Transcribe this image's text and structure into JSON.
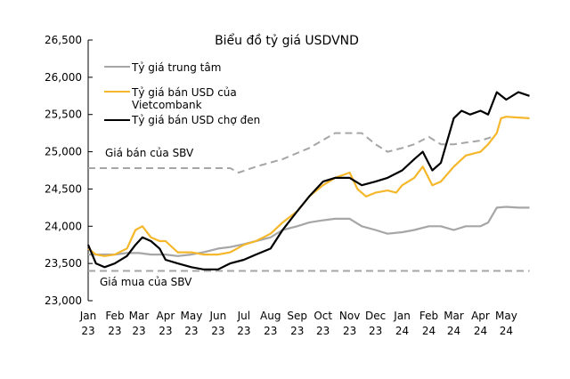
{
  "chart_data": {
    "type": "line",
    "title": "Biểu đồ tỷ giá USDVND",
    "xlabel": "",
    "ylabel": "",
    "ylim": [
      23000,
      26500
    ],
    "y_ticks": [
      "23,000",
      "23,500",
      "24,000",
      "24,500",
      "25,000",
      "25,500",
      "26,000",
      "26,500"
    ],
    "y_tick_values": [
      23000,
      23500,
      24000,
      24500,
      25000,
      25500,
      26000,
      26500
    ],
    "x_ticks": [
      {
        "date": "2023-01-01",
        "m": "Jan",
        "y": "23"
      },
      {
        "date": "2023-02-01",
        "m": "Feb",
        "y": "23"
      },
      {
        "date": "2023-03-01",
        "m": "Mar",
        "y": "23"
      },
      {
        "date": "2023-04-01",
        "m": "Apr",
        "y": "23"
      },
      {
        "date": "2023-05-01",
        "m": "May",
        "y": "23"
      },
      {
        "date": "2023-06-01",
        "m": "Jun",
        "y": "23"
      },
      {
        "date": "2023-07-01",
        "m": "Jul",
        "y": "23"
      },
      {
        "date": "2023-08-01",
        "m": "Aug",
        "y": "23"
      },
      {
        "date": "2023-09-01",
        "m": "Sep",
        "y": "23"
      },
      {
        "date": "2023-10-01",
        "m": "Oct",
        "y": "23"
      },
      {
        "date": "2023-11-01",
        "m": "Nov",
        "y": "23"
      },
      {
        "date": "2023-12-01",
        "m": "Dec",
        "y": "23"
      },
      {
        "date": "2024-01-01",
        "m": "Jan",
        "y": "24"
      },
      {
        "date": "2024-02-01",
        "m": "Feb",
        "y": "24"
      },
      {
        "date": "2024-03-01",
        "m": "Mar",
        "y": "24"
      },
      {
        "date": "2024-04-01",
        "m": "Apr",
        "y": "24"
      },
      {
        "date": "2024-05-01",
        "m": "May",
        "y": "24"
      }
    ],
    "xlim": [
      "2023-01-01",
      "2024-05-28"
    ],
    "grid": false,
    "legend_placement": "top-left",
    "legend": [
      "Tỷ giá trung tâm",
      "Tỷ giá bán USD của",
      "Vietcombank",
      "Tỷ giá bán USD chợ đen"
    ],
    "annotations": [
      "Giá bán của SBV",
      "Giá mua của SBV"
    ],
    "series": [
      {
        "name": "Tỷ giá trung tâm",
        "color": "#a6a6a6",
        "style": "solid",
        "points": [
          [
            "2023-01-01",
            23620
          ],
          [
            "2023-01-15",
            23620
          ],
          [
            "2023-02-01",
            23620
          ],
          [
            "2023-02-15",
            23640
          ],
          [
            "2023-03-01",
            23640
          ],
          [
            "2023-03-15",
            23620
          ],
          [
            "2023-04-01",
            23620
          ],
          [
            "2023-04-15",
            23600
          ],
          [
            "2023-05-01",
            23620
          ],
          [
            "2023-05-15",
            23650
          ],
          [
            "2023-06-01",
            23700
          ],
          [
            "2023-06-15",
            23720
          ],
          [
            "2023-07-01",
            23760
          ],
          [
            "2023-07-15",
            23800
          ],
          [
            "2023-08-01",
            23850
          ],
          [
            "2023-08-15",
            23950
          ],
          [
            "2023-09-01",
            24000
          ],
          [
            "2023-09-15",
            24050
          ],
          [
            "2023-10-01",
            24080
          ],
          [
            "2023-10-15",
            24100
          ],
          [
            "2023-11-01",
            24100
          ],
          [
            "2023-11-15",
            24000
          ],
          [
            "2023-12-01",
            23950
          ],
          [
            "2023-12-15",
            23900
          ],
          [
            "2024-01-01",
            23920
          ],
          [
            "2024-01-15",
            23950
          ],
          [
            "2024-02-01",
            24000
          ],
          [
            "2024-02-15",
            24000
          ],
          [
            "2024-03-01",
            23950
          ],
          [
            "2024-03-15",
            24000
          ],
          [
            "2024-04-01",
            24000
          ],
          [
            "2024-04-10",
            24050
          ],
          [
            "2024-04-20",
            24250
          ],
          [
            "2024-05-01",
            24260
          ],
          [
            "2024-05-15",
            24250
          ],
          [
            "2024-05-28",
            24250
          ]
        ]
      },
      {
        "name": "Tỷ giá bán USD của Vietcombank",
        "color": "#f5b72b",
        "style": "solid",
        "points": [
          [
            "2023-01-01",
            23700
          ],
          [
            "2023-01-10",
            23620
          ],
          [
            "2023-01-20",
            23600
          ],
          [
            "2023-02-01",
            23620
          ],
          [
            "2023-02-15",
            23700
          ],
          [
            "2023-02-25",
            23950
          ],
          [
            "2023-03-05",
            24000
          ],
          [
            "2023-03-15",
            23850
          ],
          [
            "2023-03-25",
            23800
          ],
          [
            "2023-04-01",
            23800
          ],
          [
            "2023-04-15",
            23650
          ],
          [
            "2023-05-01",
            23650
          ],
          [
            "2023-05-15",
            23620
          ],
          [
            "2023-06-01",
            23620
          ],
          [
            "2023-06-15",
            23650
          ],
          [
            "2023-07-01",
            23750
          ],
          [
            "2023-07-15",
            23800
          ],
          [
            "2023-08-01",
            23900
          ],
          [
            "2023-08-15",
            24050
          ],
          [
            "2023-09-01",
            24200
          ],
          [
            "2023-09-15",
            24400
          ],
          [
            "2023-10-01",
            24550
          ],
          [
            "2023-10-15",
            24650
          ],
          [
            "2023-11-01",
            24720
          ],
          [
            "2023-11-10",
            24500
          ],
          [
            "2023-11-20",
            24400
          ],
          [
            "2023-12-01",
            24450
          ],
          [
            "2023-12-15",
            24480
          ],
          [
            "2023-12-25",
            24450
          ],
          [
            "2024-01-01",
            24550
          ],
          [
            "2024-01-15",
            24650
          ],
          [
            "2024-01-25",
            24800
          ],
          [
            "2024-02-05",
            24550
          ],
          [
            "2024-02-15",
            24600
          ],
          [
            "2024-03-01",
            24800
          ],
          [
            "2024-03-15",
            24950
          ],
          [
            "2024-04-01",
            25000
          ],
          [
            "2024-04-10",
            25100
          ],
          [
            "2024-04-20",
            25250
          ],
          [
            "2024-04-25",
            25450
          ],
          [
            "2024-05-01",
            25470
          ],
          [
            "2024-05-15",
            25460
          ],
          [
            "2024-05-28",
            25450
          ]
        ]
      },
      {
        "name": "Tỷ giá bán USD chợ đen",
        "color": "#000000",
        "style": "solid",
        "points": [
          [
            "2023-01-01",
            23750
          ],
          [
            "2023-01-10",
            23500
          ],
          [
            "2023-01-20",
            23450
          ],
          [
            "2023-02-01",
            23500
          ],
          [
            "2023-02-15",
            23600
          ],
          [
            "2023-02-25",
            23750
          ],
          [
            "2023-03-05",
            23850
          ],
          [
            "2023-03-15",
            23800
          ],
          [
            "2023-03-25",
            23700
          ],
          [
            "2023-04-01",
            23550
          ],
          [
            "2023-04-15",
            23500
          ],
          [
            "2023-05-01",
            23450
          ],
          [
            "2023-05-15",
            23420
          ],
          [
            "2023-06-01",
            23420
          ],
          [
            "2023-06-15",
            23500
          ],
          [
            "2023-07-01",
            23550
          ],
          [
            "2023-07-15",
            23620
          ],
          [
            "2023-08-01",
            23700
          ],
          [
            "2023-08-15",
            23950
          ],
          [
            "2023-09-01",
            24200
          ],
          [
            "2023-09-15",
            24400
          ],
          [
            "2023-10-01",
            24600
          ],
          [
            "2023-10-15",
            24650
          ],
          [
            "2023-11-01",
            24650
          ],
          [
            "2023-11-15",
            24550
          ],
          [
            "2023-12-01",
            24600
          ],
          [
            "2023-12-15",
            24650
          ],
          [
            "2024-01-01",
            24750
          ],
          [
            "2024-01-15",
            24900
          ],
          [
            "2024-01-25",
            25000
          ],
          [
            "2024-02-05",
            24750
          ],
          [
            "2024-02-15",
            24850
          ],
          [
            "2024-03-01",
            25450
          ],
          [
            "2024-03-10",
            25550
          ],
          [
            "2024-03-20",
            25500
          ],
          [
            "2024-04-01",
            25550
          ],
          [
            "2024-04-10",
            25500
          ],
          [
            "2024-04-20",
            25800
          ],
          [
            "2024-05-01",
            25700
          ],
          [
            "2024-05-15",
            25800
          ],
          [
            "2024-05-28",
            25750
          ]
        ]
      },
      {
        "name": "Giá bán của SBV",
        "color": "#a6a6a6",
        "style": "dashed",
        "points": [
          [
            "2023-01-01",
            24780
          ],
          [
            "2023-06-15",
            24780
          ],
          [
            "2023-06-25",
            24720
          ],
          [
            "2023-07-15",
            24800
          ],
          [
            "2023-08-15",
            24900
          ],
          [
            "2023-09-15",
            25050
          ],
          [
            "2023-10-15",
            25250
          ],
          [
            "2023-11-15",
            25250
          ],
          [
            "2023-12-01",
            25100
          ],
          [
            "2023-12-15",
            25000
          ],
          [
            "2024-01-01",
            25050
          ],
          [
            "2024-01-15",
            25100
          ],
          [
            "2024-02-01",
            25200
          ],
          [
            "2024-02-15",
            25100
          ],
          [
            "2024-03-01",
            25100
          ],
          [
            "2024-04-01",
            25150
          ],
          [
            "2024-04-15",
            25200
          ]
        ]
      },
      {
        "name": "Giá mua của SBV",
        "color": "#a6a6a6",
        "style": "dashed",
        "points": [
          [
            "2023-01-01",
            23400
          ],
          [
            "2024-05-28",
            23400
          ]
        ]
      }
    ]
  }
}
